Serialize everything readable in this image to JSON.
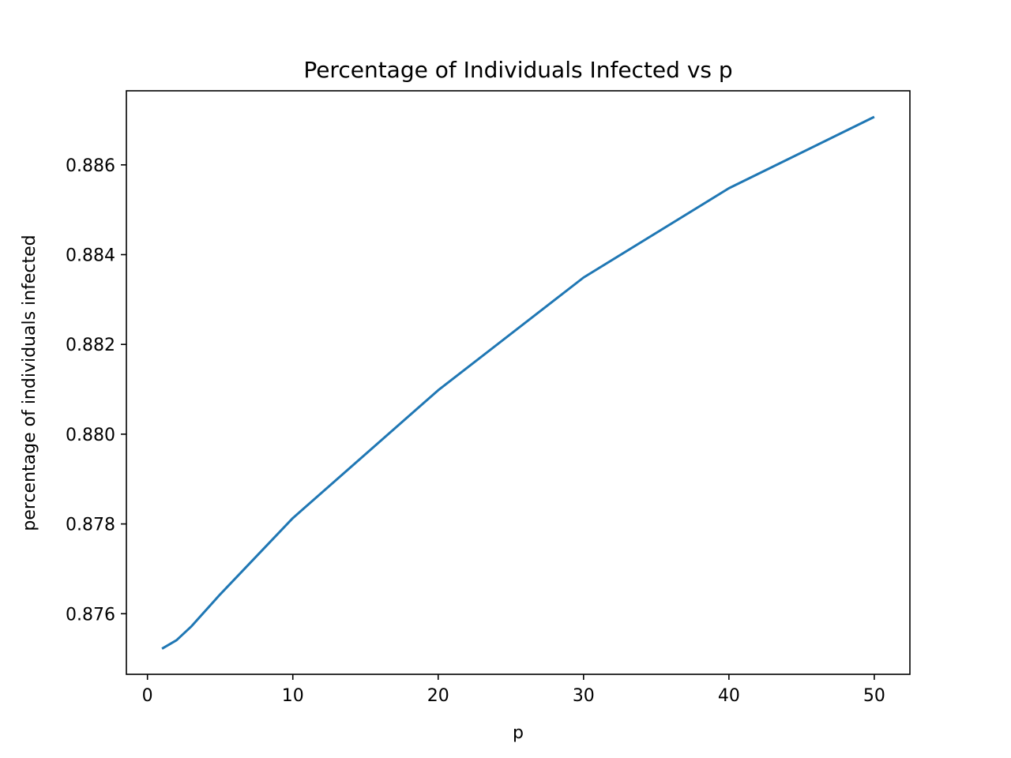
{
  "chart_data": {
    "type": "line",
    "title": "Percentage of Individuals Infected vs p",
    "xlabel": "p",
    "ylabel": "percentage of individuals infected",
    "xlim": [
      -1.45,
      52.45
    ],
    "ylim": [
      0.87465,
      0.88765
    ],
    "x_ticks": [
      0,
      10,
      20,
      30,
      40,
      50
    ],
    "x_tick_labels": [
      "0",
      "10",
      "20",
      "30",
      "40",
      "50"
    ],
    "y_ticks": [
      0.876,
      0.878,
      0.88,
      0.882,
      0.884,
      0.886
    ],
    "y_tick_labels": [
      "0.876",
      "0.878",
      "0.880",
      "0.882",
      "0.884",
      "0.886"
    ],
    "grid": false,
    "series": [
      {
        "color": "#1f77b4",
        "x": [
          1,
          2,
          3,
          5,
          10,
          20,
          30,
          40,
          50
        ],
        "y": [
          0.87522,
          0.87541,
          0.87571,
          0.87643,
          0.87813,
          0.88098,
          0.88349,
          0.88548,
          0.88707
        ]
      }
    ]
  }
}
